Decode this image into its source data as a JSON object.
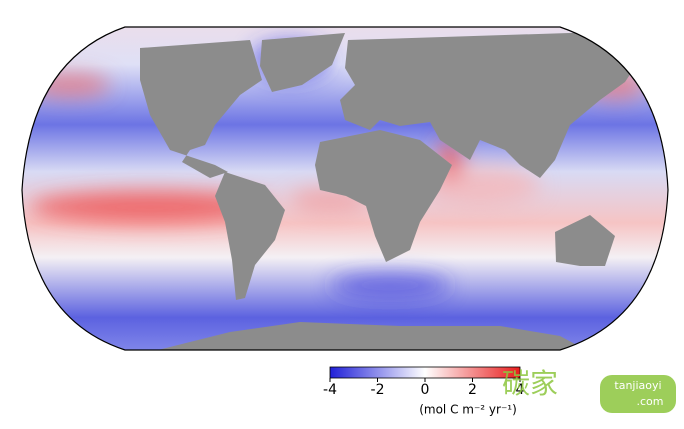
{
  "colorbar": {
    "lim": [
      -4,
      4
    ],
    "ticks": [
      -4,
      -2,
      0,
      2,
      4
    ],
    "colors": [
      "#2020d8",
      "#ffffff",
      "#e81c1c"
    ],
    "label": "(mol C m⁻² yr⁻¹)"
  },
  "watermark": {
    "brand": "碳家",
    "site": "tanjiaoyi",
    "domain": ".com"
  }
}
